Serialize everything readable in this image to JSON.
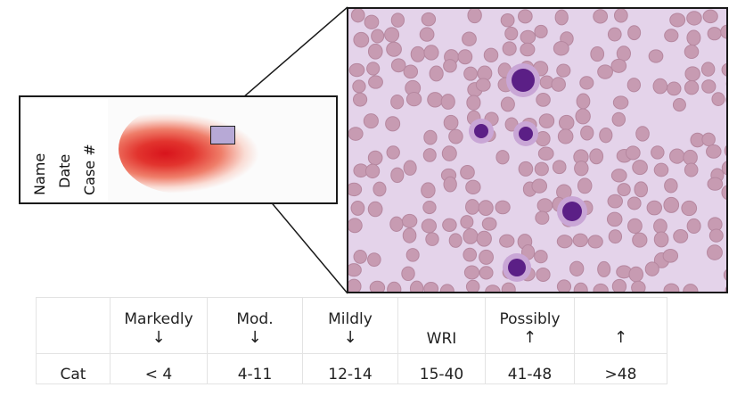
{
  "slide": {
    "label_lines": [
      "Name",
      "Date",
      "Case #"
    ]
  },
  "micrograph": {
    "alt": "blood smear micrograph"
  },
  "table": {
    "headers": [
      {
        "text": "",
        "arrow": ""
      },
      {
        "text": "Markedly",
        "arrow": "↓"
      },
      {
        "text": "Mod.",
        "arrow": "↓"
      },
      {
        "text": "Mildly",
        "arrow": "↓"
      },
      {
        "text": "WRI",
        "arrow": ""
      },
      {
        "text": "Possibly",
        "arrow": "↑"
      },
      {
        "text": "",
        "arrow": "↑"
      }
    ],
    "row": [
      "Cat",
      "< 4",
      "4-11",
      "12-14",
      "15-40",
      "41-48",
      ">48"
    ]
  },
  "colors": {
    "smear_red": "#d8141c",
    "rbc": "#c79bb2",
    "nucleus": "#5b1f86",
    "background_field": "#e4d3ea"
  }
}
